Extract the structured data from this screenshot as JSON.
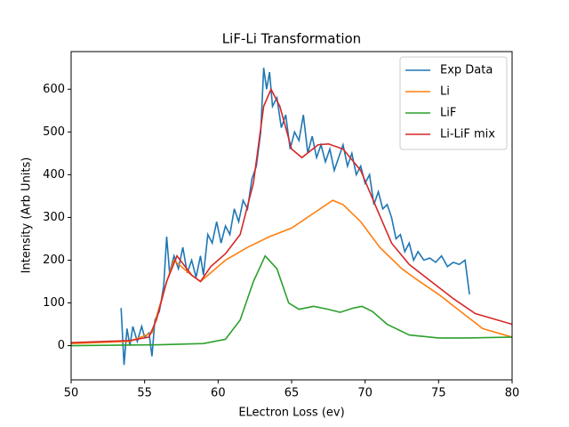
{
  "chart_data": {
    "type": "line",
    "title": "LiF-Li Transformation",
    "xlabel": "ELectron Loss (ev)",
    "ylabel": "Intensity (Arb Units)",
    "xlim": [
      50,
      80
    ],
    "xticks": [
      50,
      55,
      60,
      65,
      70,
      75,
      80
    ],
    "ylim": [
      -80,
      688
    ],
    "yticks": [
      0,
      100,
      200,
      300,
      400,
      500,
      600
    ],
    "grid": false,
    "legend": "upper right",
    "series": [
      {
        "name": "Exp Data",
        "color": "#1f77b4",
        "x": [
          53.4,
          53.6,
          53.8,
          54.0,
          54.2,
          54.5,
          54.8,
          55.0,
          55.3,
          55.5,
          55.7,
          56.0,
          56.3,
          56.5,
          56.7,
          57.0,
          57.3,
          57.6,
          57.9,
          58.2,
          58.5,
          58.8,
          59.0,
          59.3,
          59.6,
          59.9,
          60.2,
          60.5,
          60.8,
          61.1,
          61.4,
          61.7,
          62.0,
          62.3,
          62.6,
          62.9,
          63.1,
          63.3,
          63.5,
          63.7,
          64.0,
          64.3,
          64.6,
          64.9,
          65.2,
          65.5,
          65.8,
          66.1,
          66.4,
          66.7,
          67.0,
          67.3,
          67.6,
          67.9,
          68.2,
          68.5,
          68.8,
          69.1,
          69.4,
          69.7,
          70.0,
          70.3,
          70.6,
          70.9,
          71.2,
          71.5,
          71.8,
          72.1,
          72.4,
          72.7,
          73.0,
          73.3,
          73.6,
          74.0,
          74.4,
          74.8,
          75.2,
          75.6,
          76.0,
          76.4,
          76.8,
          77.1
        ],
        "values": [
          88,
          -45,
          40,
          0,
          45,
          10,
          45,
          20,
          30,
          -25,
          60,
          80,
          140,
          255,
          170,
          210,
          180,
          230,
          170,
          200,
          160,
          210,
          165,
          260,
          240,
          290,
          240,
          280,
          260,
          320,
          290,
          340,
          320,
          390,
          420,
          500,
          650,
          600,
          640,
          560,
          580,
          510,
          540,
          460,
          500,
          480,
          540,
          450,
          490,
          440,
          470,
          430,
          460,
          410,
          440,
          470,
          420,
          450,
          400,
          420,
          380,
          400,
          330,
          360,
          320,
          330,
          300,
          250,
          260,
          220,
          240,
          200,
          220,
          200,
          205,
          195,
          210,
          185,
          195,
          190,
          200,
          120
        ]
      },
      {
        "name": "Li",
        "color": "#ff7f0e",
        "x": [
          50,
          54,
          55.5,
          56.5,
          57,
          58,
          58.8,
          60.5,
          62,
          63.5,
          65,
          66.5,
          67.8,
          68.5,
          69.7,
          71,
          72.5,
          73.5,
          75,
          76.5,
          78,
          80
        ],
        "values": [
          5,
          10,
          30,
          150,
          200,
          170,
          150,
          200,
          230,
          255,
          275,
          310,
          340,
          330,
          290,
          230,
          180,
          155,
          120,
          80,
          40,
          20
        ]
      },
      {
        "name": "LiF",
        "color": "#2ca02c",
        "x": [
          50,
          56,
          59,
          60.5,
          61.5,
          62.4,
          63.2,
          64,
          64.8,
          65.5,
          66.5,
          67.5,
          68.3,
          69.2,
          69.8,
          70.5,
          71.5,
          73,
          75,
          77,
          80
        ],
        "values": [
          0,
          2,
          5,
          15,
          60,
          150,
          210,
          180,
          100,
          85,
          92,
          85,
          78,
          88,
          92,
          80,
          50,
          25,
          18,
          18,
          20
        ]
      },
      {
        "name": "Li-LiF mix",
        "color": "#d62728",
        "x": [
          50,
          54,
          55.3,
          55.8,
          56.5,
          57.2,
          58.2,
          58.8,
          59.5,
          60.5,
          61.5,
          62.4,
          63.1,
          63.6,
          64.2,
          65,
          65.7,
          66.8,
          67.5,
          68.5,
          69.7,
          70.8,
          71.8,
          73,
          74.5,
          76,
          77.5,
          80
        ],
        "values": [
          7,
          12,
          20,
          60,
          150,
          210,
          165,
          150,
          185,
          215,
          260,
          380,
          560,
          600,
          560,
          460,
          440,
          470,
          472,
          460,
          410,
          320,
          240,
          190,
          150,
          110,
          75,
          50
        ]
      }
    ]
  }
}
